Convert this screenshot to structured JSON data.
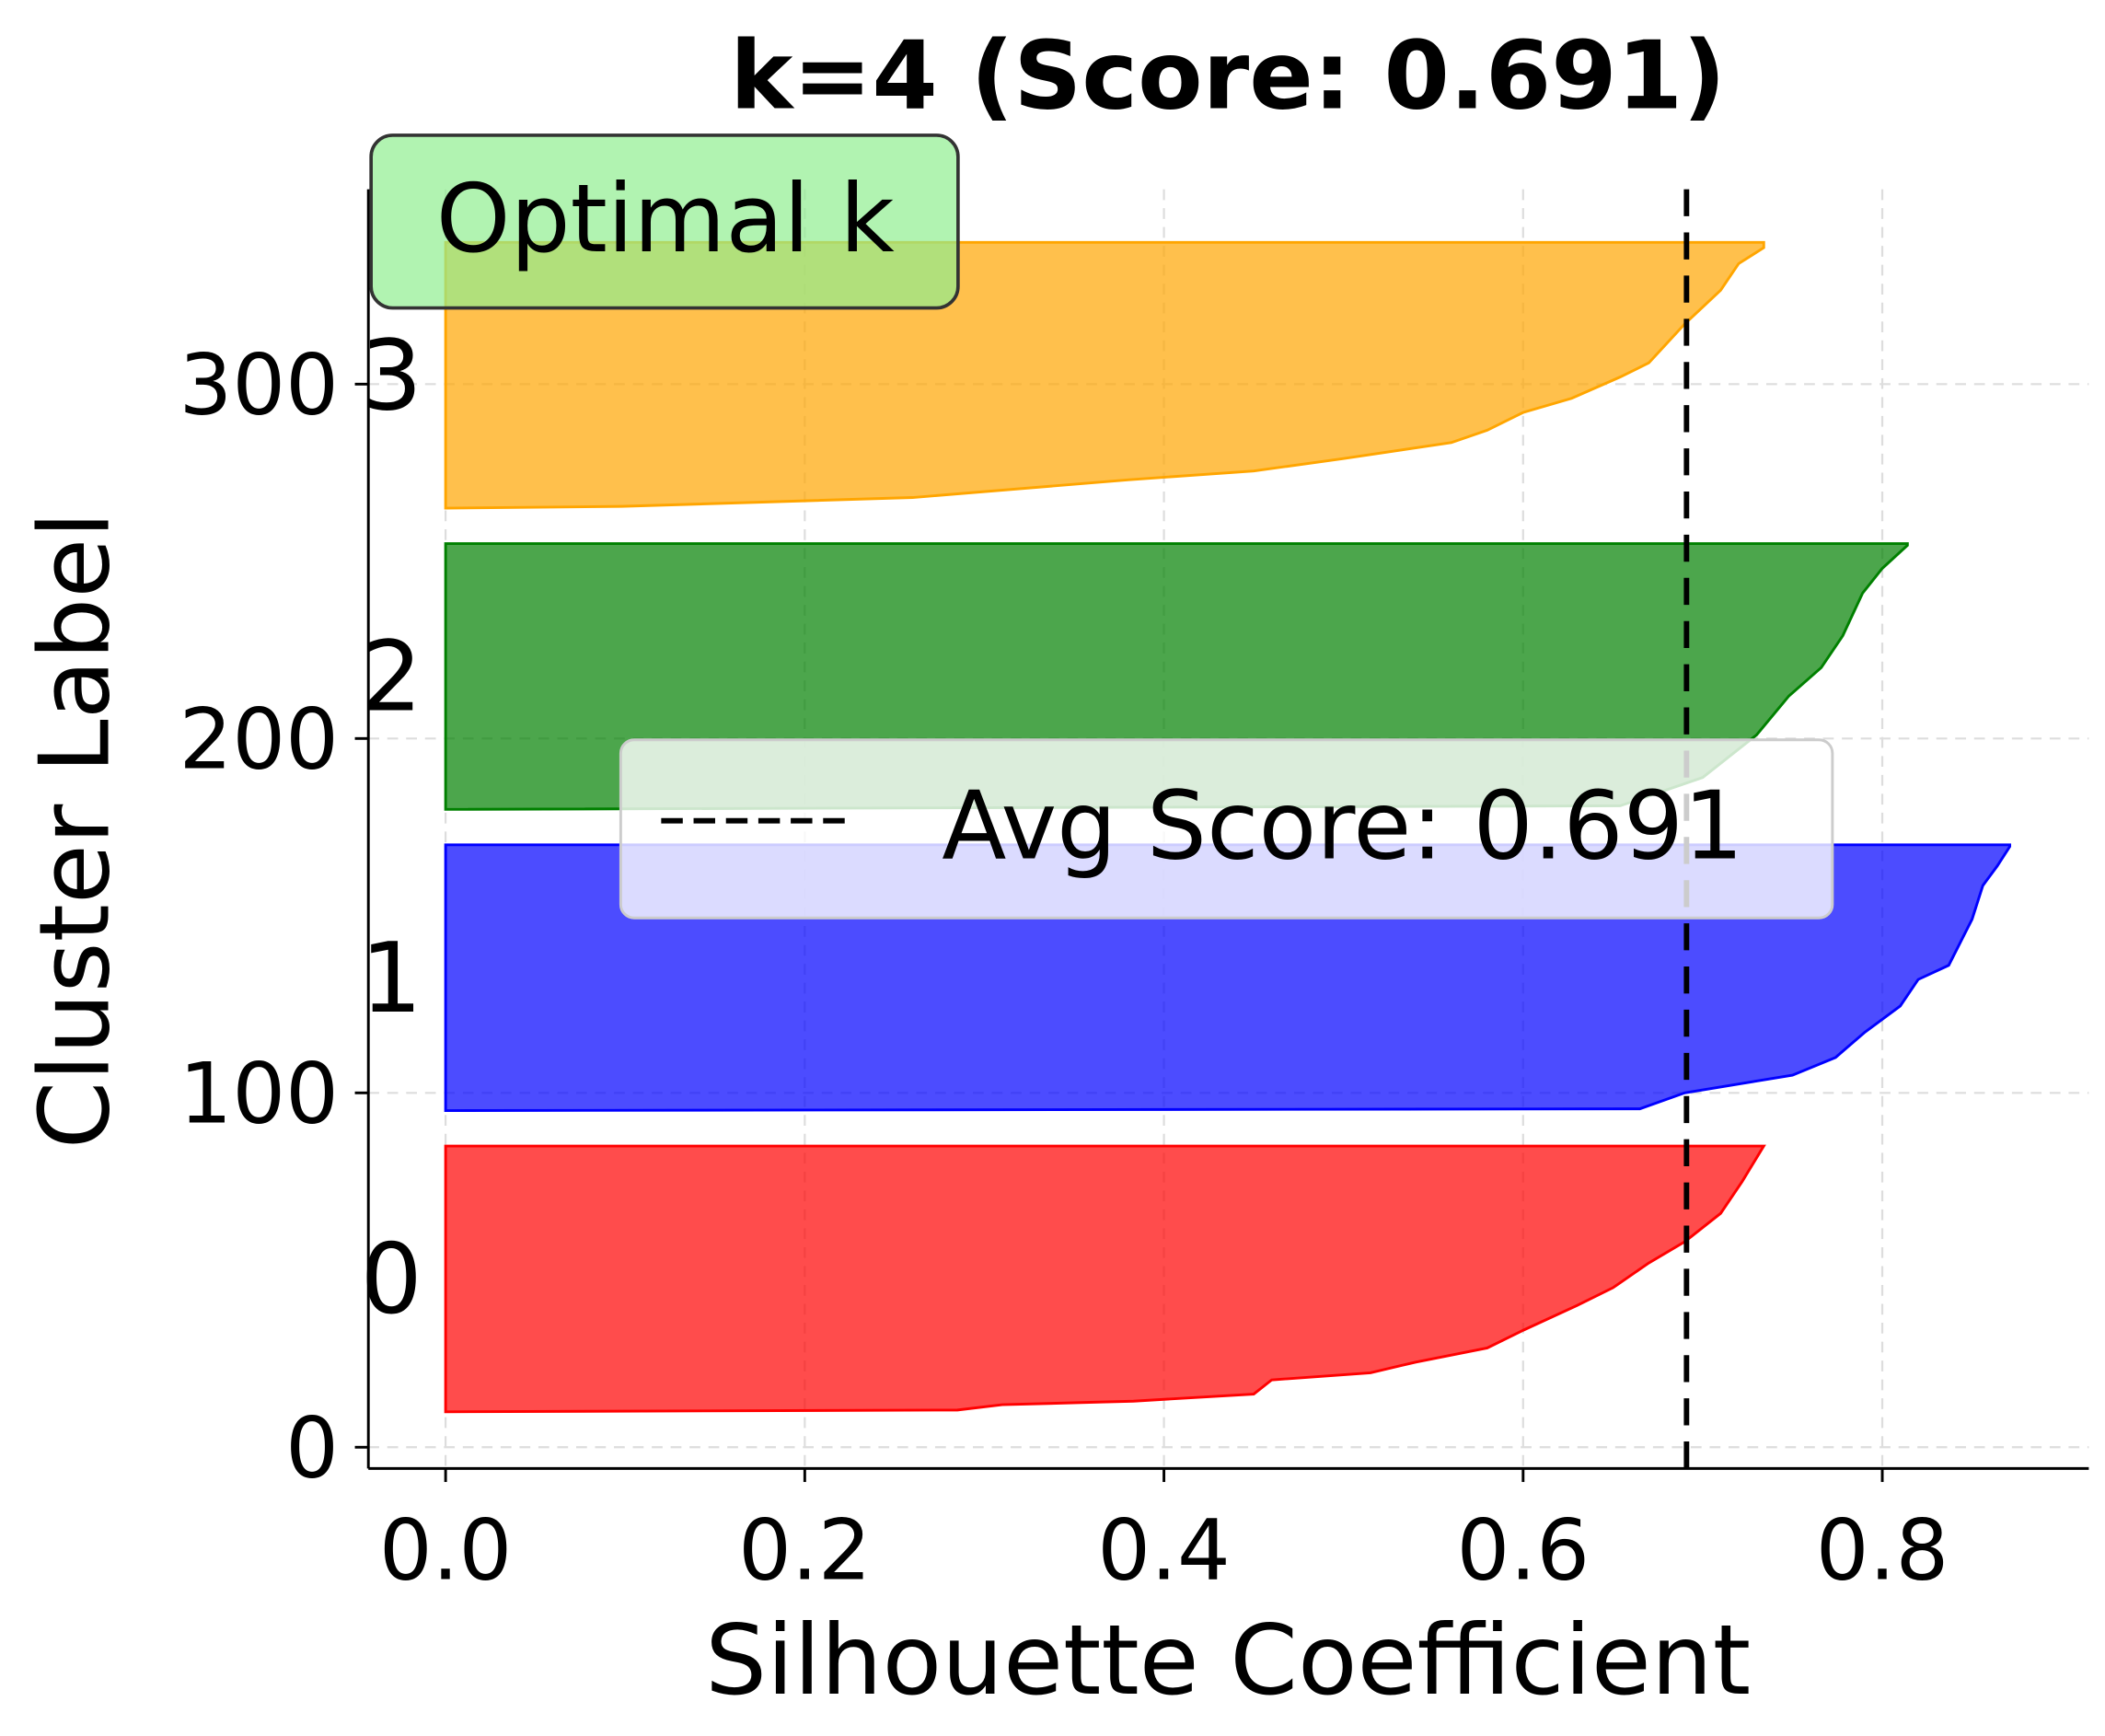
{
  "chart_data": {
    "type": "area",
    "title": "k=4 (Score: 0.691)",
    "xlabel": "Silhouette Coefficient",
    "ylabel": "Cluster Label",
    "xlim": [
      -0.043,
      0.915
    ],
    "ylim": [
      -6,
      355
    ],
    "xticks": [
      "0.0",
      "0.2",
      "0.4",
      "0.6",
      "0.8"
    ],
    "xtick_values": [
      0,
      0.2,
      0.4,
      0.6,
      0.8
    ],
    "yticks": [
      "0",
      "100",
      "200",
      "300"
    ],
    "ytick_values": [
      0,
      100,
      200,
      300
    ],
    "grid": true,
    "average_line": {
      "value": 0.691,
      "color": "#000000",
      "style": "dashed"
    },
    "legend": {
      "entries": [
        "Avg Score: 0.691"
      ],
      "placement": "center"
    },
    "annotation": {
      "text": "Optimal k",
      "color": "#90EE90",
      "placement": "top-left"
    },
    "series": [
      {
        "name": "0",
        "color": "#FF0000",
        "y_range": [
          10,
          85
        ],
        "points": [
          [
            10.5,
            0.285
          ],
          [
            12,
            0.31
          ],
          [
            13,
            0.383
          ],
          [
            15,
            0.45
          ],
          [
            19,
            0.46
          ],
          [
            21,
            0.515
          ],
          [
            24,
            0.54
          ],
          [
            28,
            0.58
          ],
          [
            33,
            0.6
          ],
          [
            40,
            0.63
          ],
          [
            45,
            0.65
          ],
          [
            52,
            0.67
          ],
          [
            58,
            0.69
          ],
          [
            66,
            0.71
          ],
          [
            75,
            0.722
          ],
          [
            85,
            0.734
          ]
        ]
      },
      {
        "name": "1",
        "color": "#0000FF",
        "y_range": [
          95,
          170
        ],
        "points": [
          [
            95.5,
            0.665
          ],
          [
            100,
            0.69
          ],
          [
            102.5,
            0.72
          ],
          [
            105,
            0.75
          ],
          [
            110,
            0.774
          ],
          [
            117,
            0.79
          ],
          [
            124.5,
            0.81
          ],
          [
            132,
            0.82
          ],
          [
            136,
            0.837
          ],
          [
            149,
            0.85
          ],
          [
            158.5,
            0.856
          ],
          [
            164,
            0.864
          ],
          [
            169.5,
            0.871
          ]
        ]
      },
      {
        "name": "2",
        "color": "#008000",
        "y_range": [
          180,
          255
        ],
        "points": [
          [
            181,
            0.654
          ],
          [
            189,
            0.7
          ],
          [
            201,
            0.73
          ],
          [
            212,
            0.748
          ],
          [
            220,
            0.766
          ],
          [
            229,
            0.778
          ],
          [
            241,
            0.789
          ],
          [
            248,
            0.8
          ],
          [
            254.5,
            0.814
          ]
        ]
      },
      {
        "name": "3",
        "color": "#FFA500",
        "y_range": [
          265,
          340
        ],
        "points": [
          [
            265.5,
            0.098
          ],
          [
            268,
            0.26
          ],
          [
            273,
            0.38
          ],
          [
            275.5,
            0.45
          ],
          [
            279,
            0.5
          ],
          [
            283.5,
            0.56
          ],
          [
            287,
            0.58
          ],
          [
            292,
            0.6
          ],
          [
            296,
            0.627
          ],
          [
            302,
            0.654
          ],
          [
            306,
            0.67
          ],
          [
            317,
            0.69
          ],
          [
            326.5,
            0.71
          ],
          [
            334,
            0.72
          ],
          [
            338.5,
            0.734
          ]
        ]
      }
    ]
  }
}
